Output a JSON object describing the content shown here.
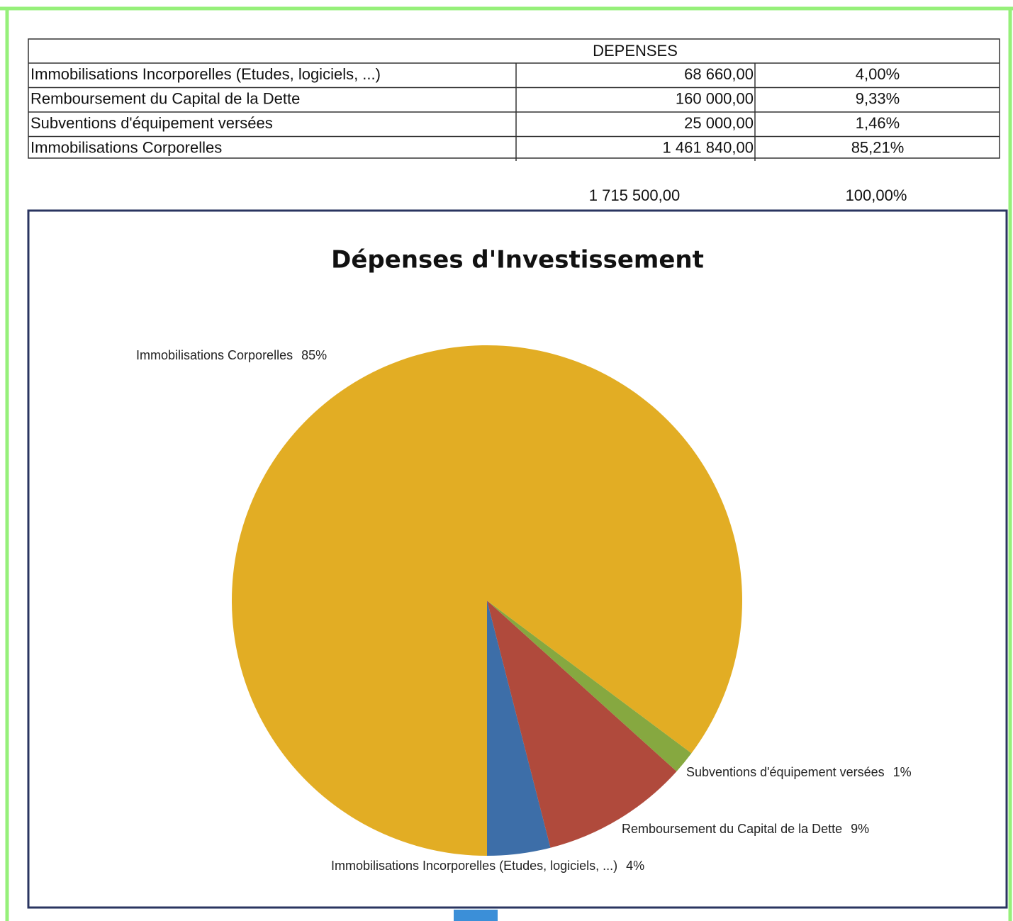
{
  "table": {
    "title": "DEPENSES",
    "rows": [
      [
        "Immobilisations Incorporelles (Etudes, logiciels, ...)",
        "68 660,00",
        "4,00%"
      ],
      [
        "Remboursement du Capital de la Dette",
        "160 000,00",
        "9,33%"
      ],
      [
        "Subventions d'équipement versées",
        "25 000,00",
        "1,46%"
      ],
      [
        "Immobilisations Corporelles",
        "1 461 840,00",
        "85,21%"
      ]
    ],
    "total": [
      "1 715 500,00",
      "100,00%"
    ]
  },
  "chart_data": {
    "type": "pie",
    "title": "Dépenses d'Investissement",
    "categories": [
      "Immobilisations Incorporelles (Etudes, logiciels, ...)",
      "Remboursement du Capital de la Dette",
      "Subventions d'équipement versées",
      "Immobilisations Corporelles"
    ],
    "values": [
      4.0,
      9.33,
      1.46,
      85.21
    ],
    "value_labels": [
      "4%",
      "9%",
      "1%",
      "85%"
    ],
    "colors": [
      "#3d6ea8",
      "#b04a3c",
      "#86a840",
      "#e2ad24"
    ]
  }
}
